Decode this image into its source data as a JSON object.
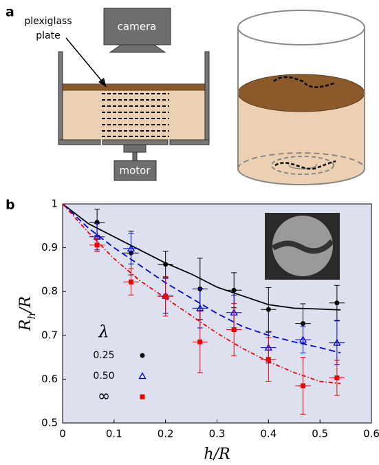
{
  "panel_a": {
    "label": "a",
    "plate_label": [
      "plexiglass",
      "plate"
    ],
    "camera": "camera",
    "motor": "motor"
  },
  "chart_data": {
    "type": "scatter",
    "panel_label": "b",
    "xlabel": "h/R",
    "ylabel_parts": [
      "R",
      "h",
      "/R"
    ],
    "xlim": [
      0,
      0.6
    ],
    "ylim": [
      0.5,
      1
    ],
    "xticks": [
      0,
      0.1,
      0.2,
      0.3,
      0.4,
      0.5,
      0.6
    ],
    "yticks": [
      0.5,
      0.6,
      0.7,
      0.8,
      0.9,
      1
    ],
    "legend_title": "λ",
    "legend_loc": "lower left",
    "series": [
      {
        "name": "0.25",
        "color": "#000000",
        "marker": "circle",
        "x": [
          0.067,
          0.133,
          0.2,
          0.267,
          0.333,
          0.4,
          0.467,
          0.533
        ],
        "values": [
          0.958,
          0.888,
          0.862,
          0.806,
          0.803,
          0.759,
          0.727,
          0.774
        ],
        "y_errors": [
          0.03,
          0.05,
          0.03,
          0.07,
          0.04,
          0.05,
          0.045,
          0.04
        ],
        "x_errors": [
          0.015,
          0.015,
          0.015,
          0.015,
          0.015,
          0.015,
          0.015,
          0.015
        ],
        "fit": {
          "line_style": "solid",
          "x": [
            0,
            0.05,
            0.1,
            0.15,
            0.2,
            0.25,
            0.3,
            0.35,
            0.4,
            0.45,
            0.5,
            0.54
          ],
          "values": [
            1,
            0.955,
            0.925,
            0.895,
            0.865,
            0.84,
            0.81,
            0.79,
            0.77,
            0.762,
            0.76,
            0.758
          ]
        }
      },
      {
        "name": "0.50",
        "color": "#0000dd",
        "marker": "triangle",
        "x": [
          0.067,
          0.133,
          0.2,
          0.267,
          0.333,
          0.4,
          0.467,
          0.533
        ],
        "values": [
          0.925,
          0.898,
          0.79,
          0.762,
          0.752,
          0.672,
          0.69,
          0.683
        ],
        "y_errors": [
          0.03,
          0.035,
          0.04,
          0.045,
          0.04,
          0.035,
          0.03,
          0.05
        ],
        "x_errors": [
          0.015,
          0.015,
          0.015,
          0.015,
          0.015,
          0.015,
          0.015,
          0.015
        ],
        "fit": {
          "line_style": "dashed",
          "x": [
            0,
            0.05,
            0.1,
            0.15,
            0.2,
            0.25,
            0.3,
            0.35,
            0.4,
            0.45,
            0.5,
            0.54
          ],
          "values": [
            1,
            0.945,
            0.9,
            0.86,
            0.82,
            0.785,
            0.75,
            0.72,
            0.7,
            0.685,
            0.672,
            0.66
          ]
        }
      },
      {
        "name": "∞",
        "color": "#ee0000",
        "marker": "square",
        "x": [
          0.067,
          0.133,
          0.2,
          0.267,
          0.333,
          0.4,
          0.467,
          0.533
        ],
        "values": [
          0.906,
          0.822,
          0.789,
          0.685,
          0.713,
          0.645,
          0.585,
          0.603
        ],
        "y_errors": [
          0.015,
          0.03,
          0.045,
          0.07,
          0.06,
          0.05,
          0.065,
          0.04
        ],
        "x_errors": [
          0.015,
          0.015,
          0.015,
          0.015,
          0.015,
          0.015,
          0.015,
          0.015
        ],
        "fit": {
          "line_style": "dashdot",
          "x": [
            0,
            0.05,
            0.1,
            0.15,
            0.2,
            0.25,
            0.3,
            0.35,
            0.4,
            0.45,
            0.5,
            0.54
          ],
          "values": [
            1,
            0.935,
            0.875,
            0.825,
            0.785,
            0.745,
            0.705,
            0.67,
            0.64,
            0.615,
            0.595,
            0.59
          ]
        }
      }
    ]
  }
}
